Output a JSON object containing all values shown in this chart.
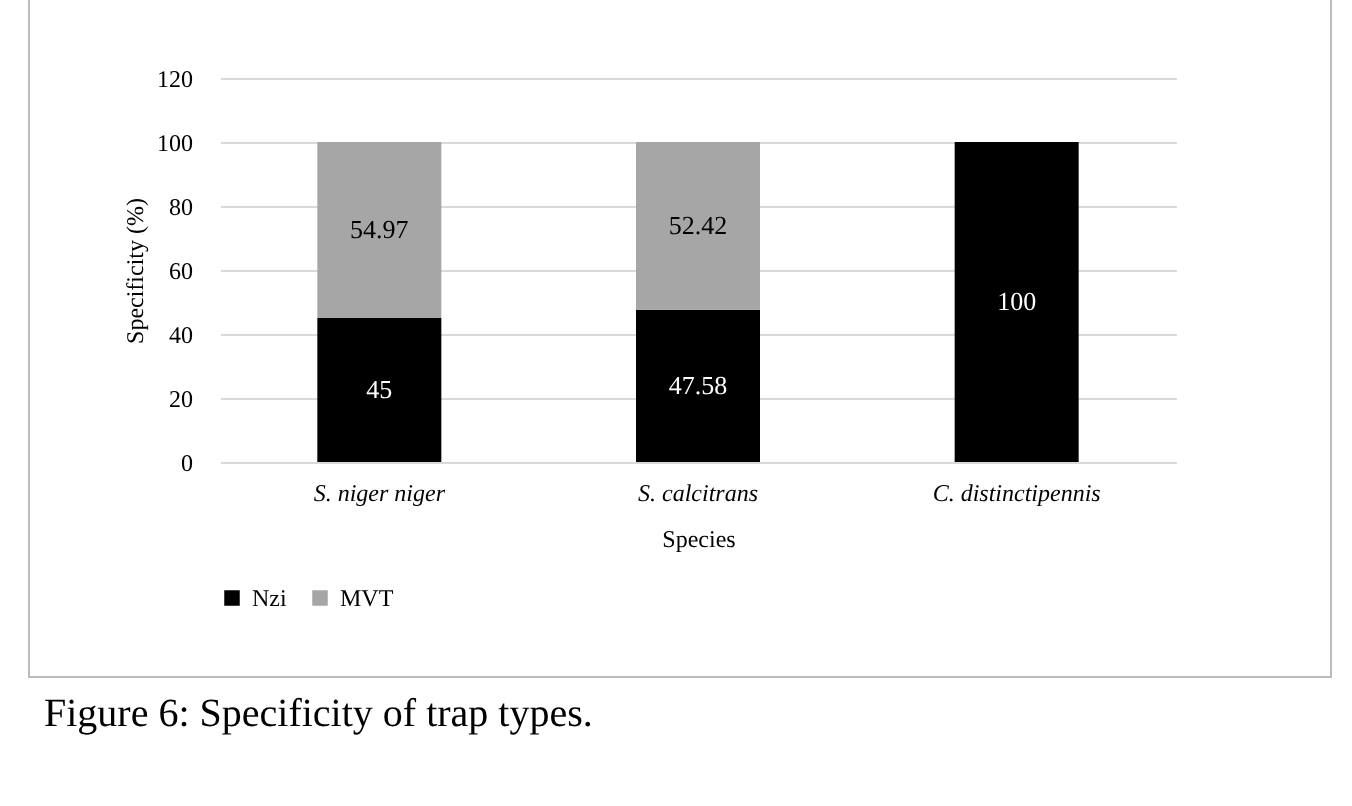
{
  "chart_data": {
    "type": "bar",
    "stacked": true,
    "xlabel": "Species",
    "ylabel": "Specificity (%)",
    "categories": [
      "S. niger niger",
      "S. calcitrans",
      "C. distinctipennis"
    ],
    "series": [
      {
        "name": "Nzi",
        "color": "#000000",
        "values": [
          45,
          47.58,
          100
        ]
      },
      {
        "name": "MVT",
        "color": "#a6a6a6",
        "values": [
          54.97,
          52.42,
          null
        ]
      }
    ],
    "ylim": [
      0,
      120
    ],
    "yticks": [
      0,
      20,
      40,
      60,
      80,
      100,
      120
    ],
    "grid": "y",
    "legend": "bottom",
    "data_labels": true,
    "annotations": [
      "Figure 6: Specificity of trap types."
    ]
  }
}
